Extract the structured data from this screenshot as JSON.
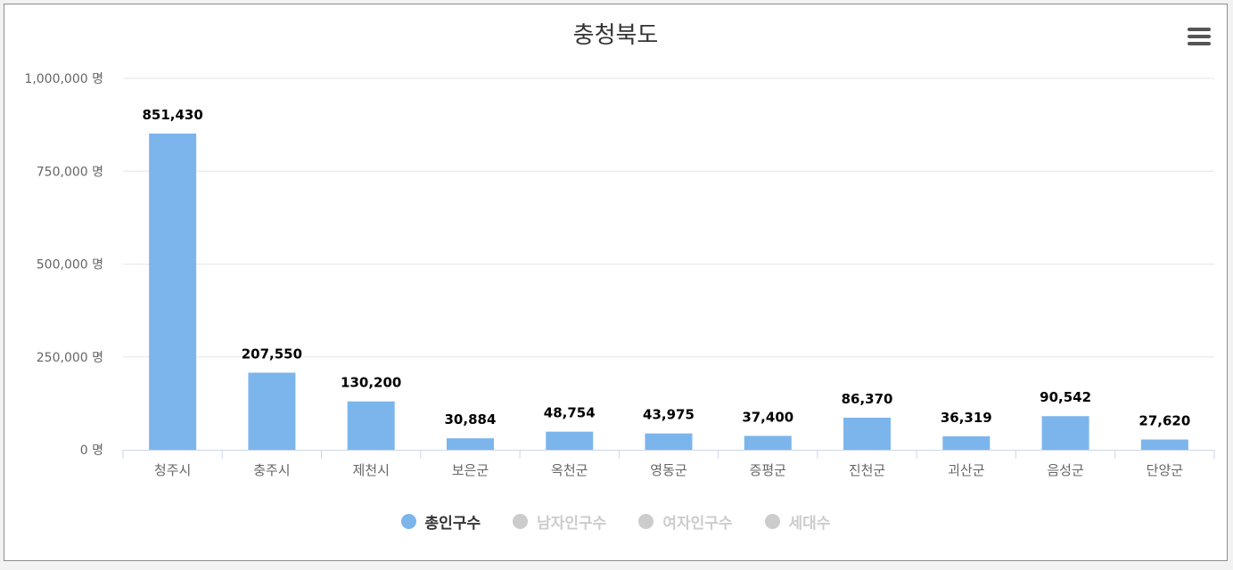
{
  "chart_data": {
    "type": "bar",
    "title": "충청북도",
    "categories": [
      "청주시",
      "충주시",
      "제천시",
      "보은군",
      "옥천군",
      "영동군",
      "증평군",
      "진천군",
      "괴산군",
      "음성군",
      "단양군"
    ],
    "series": [
      {
        "name": "총인구수",
        "values": [
          851430,
          207550,
          130200,
          30884,
          48754,
          43975,
          37400,
          86370,
          36319,
          90542,
          27620
        ],
        "visible": true
      }
    ],
    "value_labels": [
      "851,430",
      "207,550",
      "130,200",
      "30,884",
      "48,754",
      "43,975",
      "37,400",
      "86,370",
      "36,319",
      "90,542",
      "27,620"
    ],
    "y_ticks": [
      {
        "value": 0,
        "label": "0 명"
      },
      {
        "value": 250000,
        "label": "250,000 명"
      },
      {
        "value": 500000,
        "label": "500,000 명"
      },
      {
        "value": 750000,
        "label": "750,000 명"
      },
      {
        "value": 1000000,
        "label": "1,000,000 명"
      }
    ],
    "ylim": [
      0,
      1000000
    ],
    "legend": [
      {
        "label": "총인구수",
        "active": true
      },
      {
        "label": "남자인구수",
        "active": false
      },
      {
        "label": "여자인구수",
        "active": false
      },
      {
        "label": "세대수",
        "active": false
      }
    ],
    "legend_position": "bottom",
    "grid": true,
    "colors": {
      "bar": "#7cb5ec",
      "inactive": "#cccccc",
      "active_text": "#333333",
      "grid": "#e6e6e6",
      "axis": "#ccd6eb"
    }
  },
  "toolbar": {
    "menu_icon": "hamburger-menu-icon"
  }
}
